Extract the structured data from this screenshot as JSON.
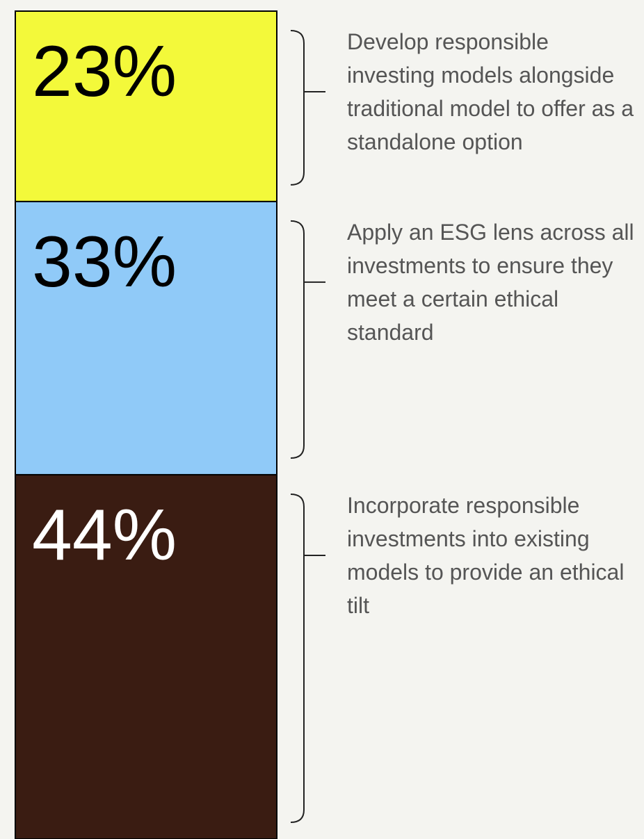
{
  "chart_data": {
    "type": "stacked-bar",
    "categories": [
      "Develop responsible investing models alongside traditional model to offer as a standalone option",
      "Apply an ESG lens across all investments to ensure they meet a certain ethical standard",
      "Incorporate responsible investments into existing models to provide an ethical tilt"
    ],
    "values": [
      23,
      33,
      44
    ],
    "value_labels": [
      "23%",
      "33%",
      "44%"
    ],
    "colors": [
      "#f3f93a",
      "#90caf8",
      "#3a1c12"
    ],
    "label_colors": [
      "#000000",
      "#000000",
      "#ffffff"
    ]
  }
}
